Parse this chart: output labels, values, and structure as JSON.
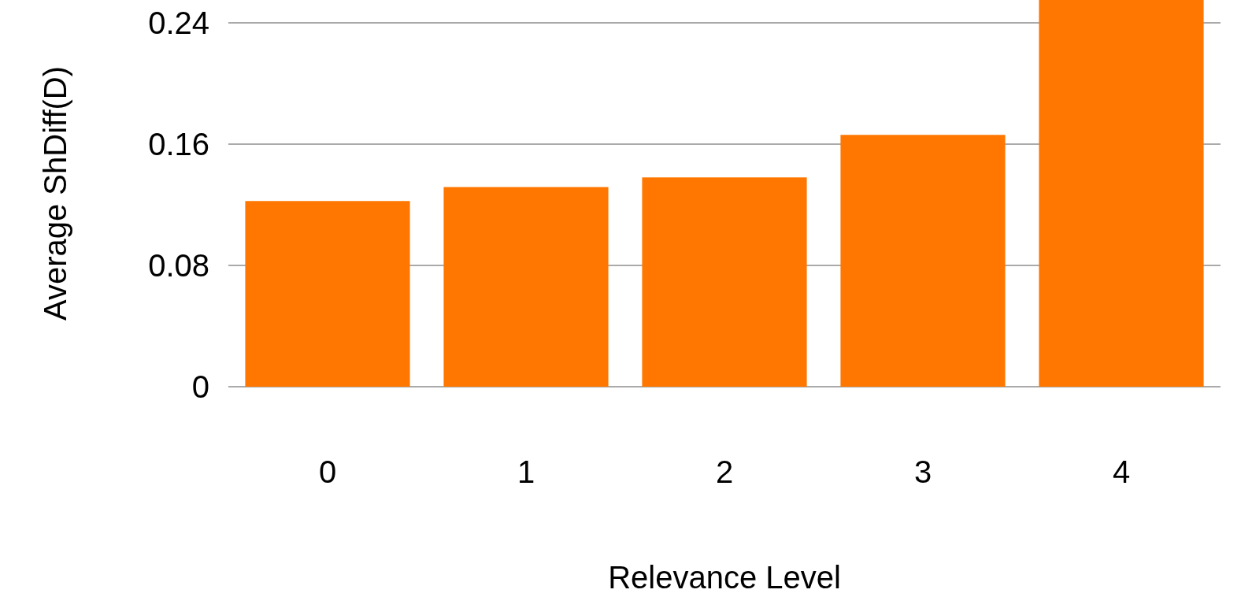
{
  "chart_data": {
    "type": "bar",
    "xlabel": "Relevance Level",
    "ylabel": "Average ShDiff(D)",
    "categories": [
      "0",
      "1",
      "2",
      "3",
      "4"
    ],
    "values": [
      0.1225,
      0.1316,
      0.138,
      0.166,
      0.255
    ],
    "color": "#ff7700",
    "ylim": [
      0,
      0.255
    ],
    "yticks": [
      0,
      0.08,
      0.16,
      0.24
    ],
    "grid": "y"
  }
}
